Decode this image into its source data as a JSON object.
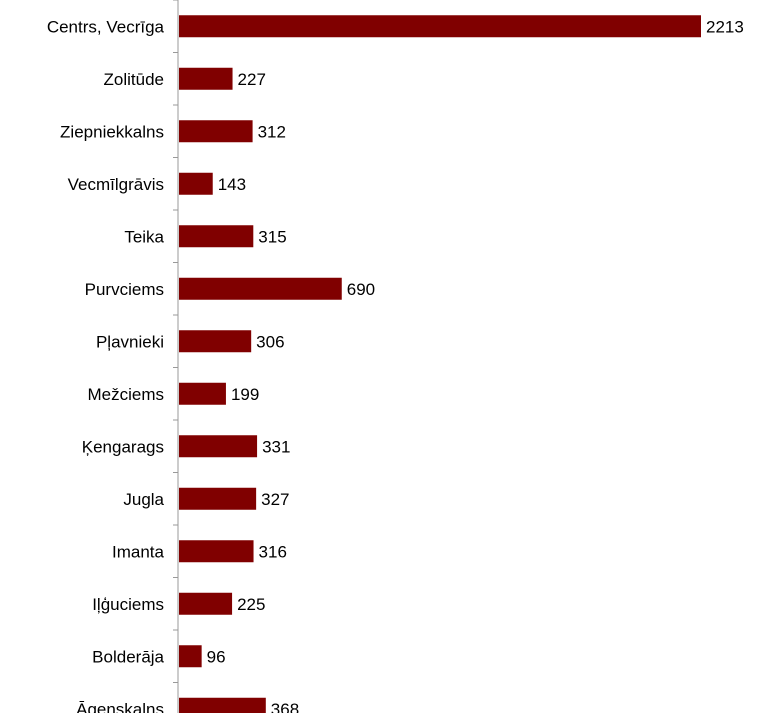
{
  "chart_data": {
    "type": "bar",
    "orientation": "horizontal",
    "title": "",
    "xlabel": "",
    "ylabel": "",
    "categories": [
      "Centrs, Vecrīga",
      "Zolitūde",
      "Ziepniekkalns",
      "Vecmīlgrāvis",
      "Teika",
      "Purvciems",
      "Pļavnieki",
      "Mežciems",
      "Ķengarags",
      "Jugla",
      "Imanta",
      "Iļģuciems",
      "Bolderāja",
      "Āgenskalns"
    ],
    "values": [
      2213,
      227,
      312,
      143,
      315,
      690,
      306,
      199,
      331,
      327,
      316,
      225,
      96,
      368
    ],
    "value_labels": [
      "2213",
      "227",
      "312",
      "143",
      "315",
      "690",
      "306",
      "199",
      "331",
      "327",
      "316",
      "225",
      "96",
      "368"
    ],
    "xlim": [
      0,
      2213
    ],
    "grid": false,
    "legend": "none",
    "bar_color": "#800000",
    "axis_color": "#999999"
  }
}
